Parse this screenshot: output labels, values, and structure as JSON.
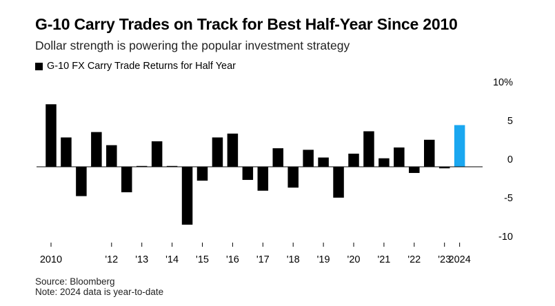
{
  "title": "G-10 Carry Trades on Track for Best Half-Year Since 2010",
  "subtitle": "Dollar strength is powering the popular investment strategy",
  "legend": {
    "label": "G-10 FX Carry Trade Returns for Half Year"
  },
  "footer": {
    "source": "Source: Bloomberg",
    "note": "Note: 2024 data is year-to-date"
  },
  "colors": {
    "bar": "#000000",
    "highlight": "#1aa7f0",
    "axis": "#000000"
  },
  "chart_data": {
    "type": "bar",
    "title": "G-10 Carry Trades on Track for Best Half-Year Since 2010",
    "series": [
      {
        "name": "G-10 FX Carry Trade Returns for Half Year",
        "values": [
          8.1,
          3.8,
          -3.8,
          4.5,
          2.8,
          -3.3,
          0.1,
          3.3,
          0.1,
          -7.5,
          -1.8,
          3.8,
          4.3,
          -1.7,
          -3.1,
          2.4,
          -2.7,
          2.2,
          1.2,
          -4.0,
          1.7,
          4.6,
          1.1,
          2.5,
          -0.8,
          3.5,
          -0.2,
          5.4
        ]
      }
    ],
    "highlight_index": 27,
    "x_tick_labels": [
      {
        "label": "2010",
        "index": 0.5
      },
      {
        "label": "'12",
        "index": 4.5
      },
      {
        "label": "'13",
        "index": 6.5
      },
      {
        "label": "'14",
        "index": 8.5
      },
      {
        "label": "'15",
        "index": 10.5
      },
      {
        "label": "'16",
        "index": 12.5
      },
      {
        "label": "'17",
        "index": 14.5
      },
      {
        "label": "'18",
        "index": 16.5
      },
      {
        "label": "'19",
        "index": 18.5
      },
      {
        "label": "'20",
        "index": 20.5
      },
      {
        "label": "'21",
        "index": 22.5
      },
      {
        "label": "'22",
        "index": 24.5
      },
      {
        "label": "'23",
        "index": 26.5
      },
      {
        "label": "2024",
        "index": 27.5
      }
    ],
    "y_ticks": [
      {
        "value": 10,
        "label": "10%"
      },
      {
        "value": 5,
        "label": "5"
      },
      {
        "value": 0,
        "label": "0"
      },
      {
        "value": -5,
        "label": "-5"
      },
      {
        "value": -10,
        "label": "-10"
      }
    ],
    "ylim": [
      -10,
      10
    ],
    "xlabel": "",
    "ylabel": "",
    "grid": false,
    "legend_position": "top-left"
  }
}
